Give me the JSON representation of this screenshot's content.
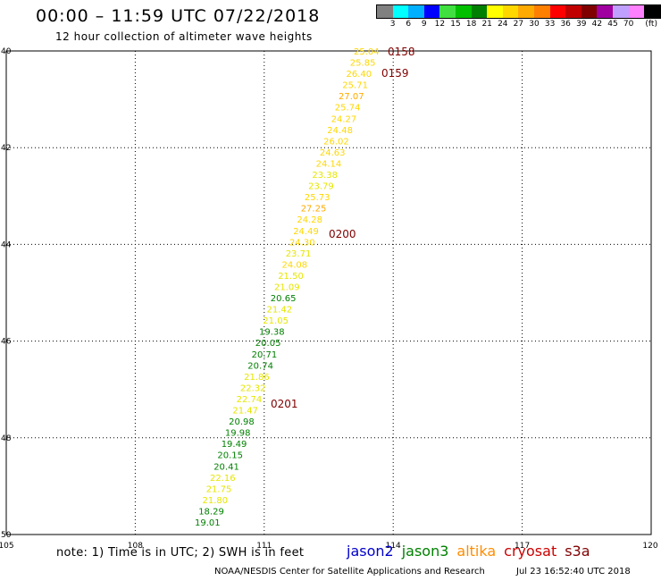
{
  "header": {
    "title": "00:00 – 11:59 UTC 07/22/2018",
    "subtitle": "12 hour collection of altimeter wave heights"
  },
  "legend": {
    "unit": "(ft)",
    "labels": [
      "3",
      "6",
      "9",
      "12",
      "15",
      "18",
      "21",
      "24",
      "27",
      "30",
      "33",
      "36",
      "39",
      "42",
      "45",
      "70"
    ],
    "colors": [
      "#808080",
      "#00ffff",
      "#00b0ff",
      "#0000ff",
      "#40e040",
      "#00c000",
      "#008000",
      "#ffff00",
      "#ffd700",
      "#ffaa00",
      "#ff8000",
      "#ff0000",
      "#c00000",
      "#800000",
      "#a000a0",
      "#c0a0ff",
      "#ff80ff",
      "#000000"
    ]
  },
  "axes": {
    "x_ticks": [
      "105",
      "108",
      "111",
      "114",
      "117",
      "120"
    ],
    "y_ticks": [
      "40",
      "42",
      "44",
      "46",
      "48",
      "50"
    ]
  },
  "chart_data": {
    "type": "scatter",
    "x_range": [
      105,
      120
    ],
    "y_range": [
      40,
      50
    ],
    "grid": true,
    "wave_heights_ft": [
      "25.04",
      "25.85",
      "26.40",
      "25.71",
      "27.07",
      "25.74",
      "24.27",
      "24.48",
      "26.02",
      "24.63",
      "24.14",
      "23.38",
      "23.79",
      "25.73",
      "27.25",
      "24.28",
      "24.49",
      "24.30",
      "23.71",
      "24.08",
      "21.50",
      "21.09",
      "20.65",
      "21.42",
      "21.05",
      "19.38",
      "20.05",
      "20.71",
      "20.74",
      "21.86",
      "22.32",
      "22.74",
      "21.47",
      "20.98",
      "19.98",
      "19.49",
      "20.15",
      "20.41",
      "22.16",
      "21.75",
      "21.80",
      "18.29",
      "19.01"
    ],
    "pass_times": [
      "0158",
      "0159",
      "0200",
      "0201"
    ]
  },
  "note": "note: 1) Time is in UTC; 2) SWH is in feet",
  "satellites": [
    {
      "name": "jason2",
      "color": "#0000cc"
    },
    {
      "name": "jason3",
      "color": "#008000"
    },
    {
      "name": "altika",
      "color": "#ff8c00"
    },
    {
      "name": "cryosat",
      "color": "#cc0000"
    },
    {
      "name": "s3a",
      "color": "#800000"
    }
  ],
  "footer": {
    "credit": "NOAA/NESDIS Center for Satellite Applications and Research",
    "timestamp": "Jul 23 16:52:40 UTC 2018"
  }
}
